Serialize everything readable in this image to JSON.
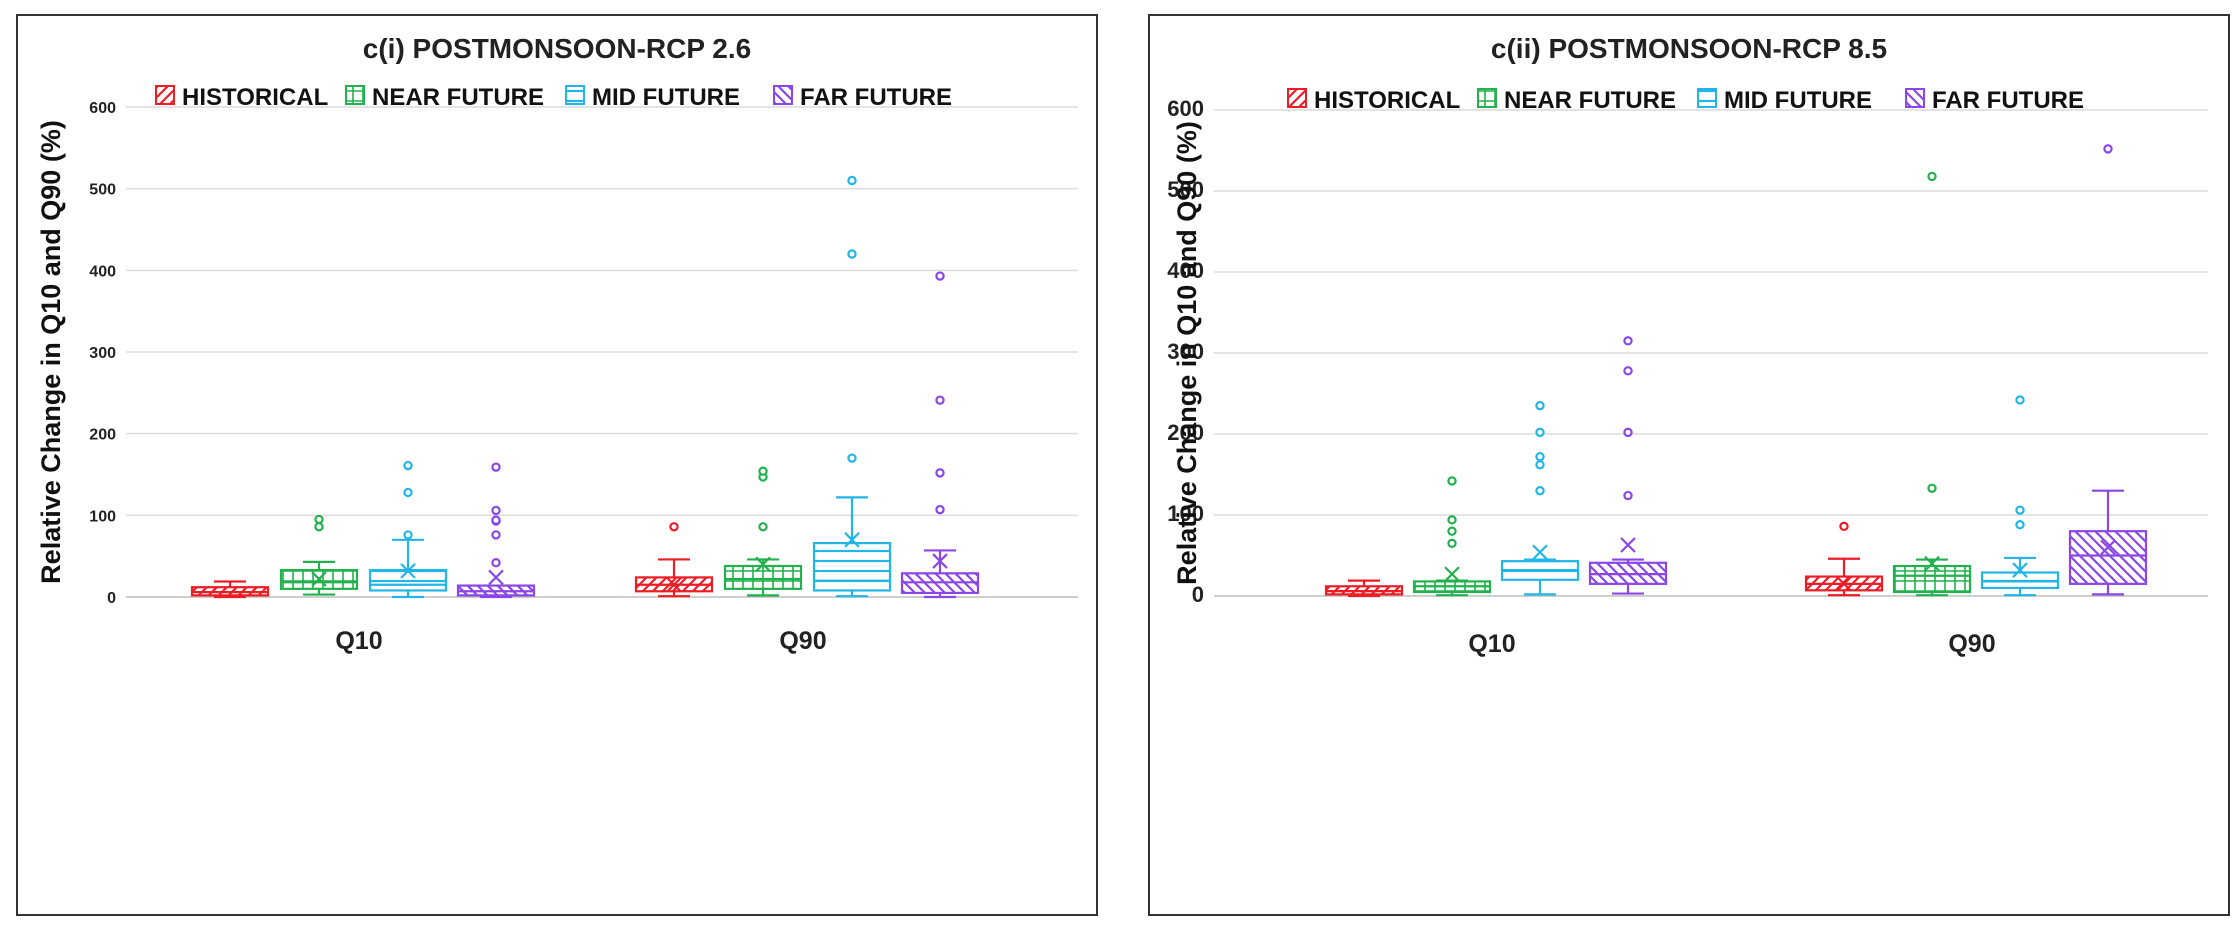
{
  "chart_data": [
    {
      "type": "box",
      "title": "c(i)  POSTMONSOON-RCP 2.6",
      "xlabel": "",
      "ylabel": "Relative Change in Q10 and Q90 (%)",
      "ylim": [
        0,
        600
      ],
      "yticks": [
        0,
        100,
        200,
        300,
        400,
        500,
        600
      ],
      "categories": [
        "Q10",
        "Q90"
      ],
      "legend": [
        "HISTORICAL",
        "NEAR FUTURE",
        "MID FUTURE",
        "FAR FUTURE"
      ],
      "series": [
        {
          "name": "HISTORICAL",
          "color": "#ee1c25",
          "pattern": "diagonal-up",
          "boxes": [
            {
              "min": 0,
              "q1": 2,
              "median": 6,
              "q3": 12,
              "max": 19,
              "mean": null,
              "outliers": []
            },
            {
              "min": 1,
              "q1": 7,
              "median": 15,
              "q3": 24,
              "max": 46,
              "mean": 15,
              "outliers": [
                86
              ]
            }
          ]
        },
        {
          "name": "NEAR FUTURE",
          "color": "#22b14c",
          "pattern": "grid",
          "boxes": [
            {
              "min": 3,
              "q1": 10,
              "median": 18,
              "q3": 33,
              "max": 43,
              "mean": 22,
              "outliers": [
                86,
                95
              ]
            },
            {
              "min": 2,
              "q1": 10,
              "median": 22,
              "q3": 38,
              "max": 46,
              "mean": 40,
              "outliers": [
                86,
                147,
                154
              ]
            }
          ]
        },
        {
          "name": "MID FUTURE",
          "color": "#22b5e8",
          "pattern": "horizontal",
          "boxes": [
            {
              "min": 0,
              "q1": 8,
              "median": 15,
              "q3": 33,
              "max": 70,
              "mean": 32,
              "outliers": [
                76,
                128,
                161
              ]
            },
            {
              "min": 1,
              "q1": 8,
              "median": 20,
              "q3": 66,
              "max": 122,
              "mean": 70,
              "outliers": [
                170,
                420,
                510
              ]
            }
          ]
        },
        {
          "name": "FAR FUTURE",
          "color": "#8b46e8",
          "pattern": "diagonal-down",
          "boxes": [
            {
              "min": 0,
              "q1": 2,
              "median": 7,
              "q3": 14,
              "max": 14,
              "mean": 24,
              "outliers": [
                42,
                76,
                93,
                94,
                106,
                159
              ]
            },
            {
              "min": 0,
              "q1": 5,
              "median": 18,
              "q3": 29,
              "max": 57,
              "mean": 44,
              "outliers": [
                107,
                152,
                241,
                393
              ]
            }
          ]
        }
      ]
    },
    {
      "type": "box",
      "title": "c(ii)  POSTMONSOON-RCP 8.5",
      "xlabel": "",
      "ylabel": "Relative Change in Q10 and Q90 (%)",
      "ylim": [
        0,
        600
      ],
      "yticks": [
        0,
        100,
        200,
        300,
        400,
        500,
        600
      ],
      "categories": [
        "Q10",
        "Q90"
      ],
      "legend": [
        "HISTORICAL",
        "NEAR FUTURE",
        "MID FUTURE",
        "FAR FUTURE"
      ],
      "series": [
        {
          "name": "HISTORICAL",
          "color": "#ee1c25",
          "pattern": "diagonal-up",
          "boxes": [
            {
              "min": 0,
              "q1": 2,
              "median": 6,
              "q3": 12,
              "max": 19,
              "mean": null,
              "outliers": []
            },
            {
              "min": 1,
              "q1": 7,
              "median": 15,
              "q3": 24,
              "max": 46,
              "mean": 15,
              "outliers": [
                86
              ]
            }
          ]
        },
        {
          "name": "NEAR FUTURE",
          "color": "#22b14c",
          "pattern": "grid",
          "boxes": [
            {
              "min": 1,
              "q1": 5,
              "median": 12,
              "q3": 18,
              "max": 19,
              "mean": 27,
              "outliers": [
                65,
                80,
                94,
                142
              ]
            },
            {
              "min": 1,
              "q1": 5,
              "median": 25,
              "q3": 37,
              "max": 45,
              "mean": 40,
              "outliers": [
                133,
                518
              ]
            }
          ]
        },
        {
          "name": "MID FUTURE",
          "color": "#22b5e8",
          "pattern": "horizontal",
          "boxes": [
            {
              "min": 2,
              "q1": 20,
              "median": 32,
              "q3": 43,
              "max": 45,
              "mean": 54,
              "outliers": [
                130,
                162,
                172,
                202,
                235
              ]
            },
            {
              "min": 1,
              "q1": 10,
              "median": 18,
              "q3": 29,
              "max": 47,
              "mean": 32,
              "outliers": [
                88,
                106,
                242
              ]
            }
          ]
        },
        {
          "name": "FAR FUTURE",
          "color": "#8b46e8",
          "pattern": "diagonal-down",
          "boxes": [
            {
              "min": 3,
              "q1": 15,
              "median": 27,
              "q3": 41,
              "max": 45,
              "mean": 63,
              "outliers": [
                124,
                202,
                278,
                315
              ]
            },
            {
              "min": 2,
              "q1": 15,
              "median": 50,
              "q3": 80,
              "max": 130,
              "mean": 60,
              "outliers": [
                552
              ]
            }
          ]
        }
      ]
    }
  ]
}
